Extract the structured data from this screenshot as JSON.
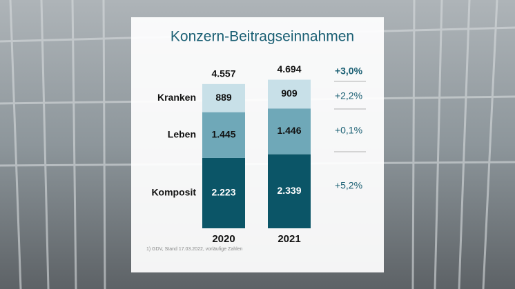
{
  "chart_data": {
    "type": "stacked_bar",
    "title": "Konzern-Beitragseinnahmen",
    "categories": [
      "2020",
      "2021"
    ],
    "series": [
      {
        "name": "Komposit",
        "color": "#0b5567",
        "values": [
          2223,
          2339
        ],
        "value_labels": [
          "2.223",
          "2.339"
        ]
      },
      {
        "name": "Leben",
        "color": "#6fa8b8",
        "values": [
          1445,
          1446
        ],
        "value_labels": [
          "1.445",
          "1.446"
        ]
      },
      {
        "name": "Kranken",
        "color": "#c8e0e8",
        "values": [
          889,
          909
        ],
        "value_labels": [
          "889",
          "909"
        ]
      }
    ],
    "totals": {
      "values": [
        4557,
        4694
      ],
      "value_labels": [
        "4.557",
        "4.694"
      ]
    },
    "growth": {
      "total": {
        "value": 3.0,
        "label": "+3,0%"
      },
      "series": [
        {
          "value": 5.2,
          "label": "+5,2%"
        },
        {
          "value": 0.1,
          "label": "+0,1%"
        },
        {
          "value": 2.2,
          "label": "+2,2%"
        }
      ]
    },
    "footnote": "1) GDV, Stand 17.03.2022, vorläufige Zahlen"
  }
}
